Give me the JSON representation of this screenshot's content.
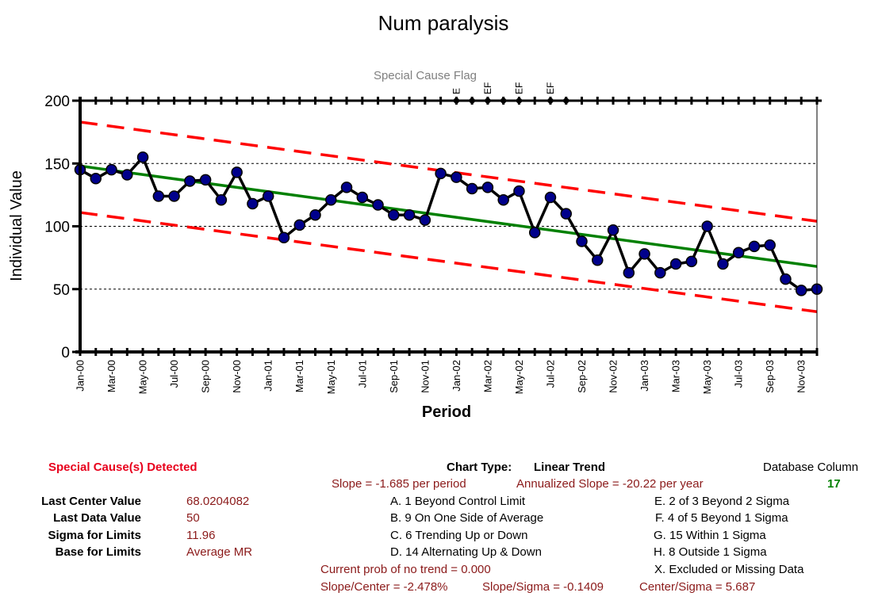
{
  "chart_data": {
    "type": "line",
    "title": "Num paralysis",
    "xlabel": "Period",
    "ylabel": "Individual Value",
    "ylim": [
      0,
      200
    ],
    "yticks": [
      0,
      50,
      100,
      150,
      200
    ],
    "grid": "horizontal dashed",
    "special_cause_label": "Special Cause Flag",
    "x_tick_labels": [
      "Jan-00",
      "Mar-00",
      "May-00",
      "Jul-00",
      "Sep-00",
      "Nov-00",
      "Jan-01",
      "Mar-01",
      "May-01",
      "Jul-01",
      "Sep-01",
      "Nov-01",
      "Jan-02",
      "Mar-02",
      "May-02",
      "Jul-02",
      "Sep-02",
      "Nov-02",
      "Jan-03",
      "Mar-03",
      "May-03",
      "Jul-03",
      "Sep-03",
      "Nov-03"
    ],
    "series": [
      {
        "values": [
          145,
          138,
          145,
          141,
          155,
          124,
          124,
          136,
          137,
          121,
          143,
          118,
          124,
          91,
          101,
          109,
          121,
          131,
          123,
          117,
          109,
          109,
          105,
          142,
          139,
          130,
          131,
          121,
          128,
          95,
          123,
          110,
          88,
          73,
          97,
          63,
          78,
          63,
          70,
          72,
          100,
          70,
          79,
          84,
          85,
          58,
          49,
          50
        ]
      }
    ],
    "center_line": {
      "start": 148.0,
      "end": 68.0204082
    },
    "upper_limit": {
      "start": 183.0,
      "end": 104.0
    },
    "lower_limit": {
      "start": 111.0,
      "end": 32.0
    },
    "flags": [
      {
        "index": 24,
        "label": "E"
      },
      {
        "index": 25,
        "label": ""
      },
      {
        "index": 26,
        "label": "EF"
      },
      {
        "index": 27,
        "label": ""
      },
      {
        "index": 28,
        "label": "EF"
      },
      {
        "index": 30,
        "label": "EF"
      },
      {
        "index": 31,
        "label": ""
      }
    ],
    "colors": {
      "data": "#000000",
      "marker": "#00008b",
      "center": "#008000",
      "limits": "#ff0000",
      "flag": "#000000"
    }
  },
  "stats": {
    "special_cause": "Special Cause(s) Detected",
    "chart_type_label": "Chart Type:",
    "chart_type_value": "Linear Trend",
    "database_column_label": "Database Column",
    "database_column_value": "17",
    "slope": "Slope = -1.685 per period",
    "annualized_slope": "Annualized Slope = -20.22 per year",
    "last_center_label": "Last Center Value",
    "last_center_value": "68.0204082",
    "last_data_label": "Last Data Value",
    "last_data_value": "50",
    "sigma_label": "Sigma for Limits",
    "sigma_value": "11.96",
    "base_label": "Base for Limits",
    "base_value": "Average MR",
    "rule_a": "A.  1 Beyond Control Limit",
    "rule_b": "B.  9 On One Side of Average",
    "rule_c": "C.  6 Trending Up or Down",
    "rule_d": "D.  14 Alternating  Up & Down",
    "rule_e": "E.  2 of 3 Beyond 2 Sigma",
    "rule_f": "F.  4 of 5 Beyond 1 Sigma",
    "rule_g": "G.  15 Within 1 Sigma",
    "rule_h": "H.  8 Outside 1 Sigma",
    "rule_x": "X.  Excluded or Missing Data",
    "prob_no_trend": "Current prob of no trend = 0.000",
    "slope_center": "Slope/Center = -2.478%",
    "slope_sigma": "Slope/Sigma = -0.1409",
    "center_sigma": "Center/Sigma = 5.687"
  }
}
